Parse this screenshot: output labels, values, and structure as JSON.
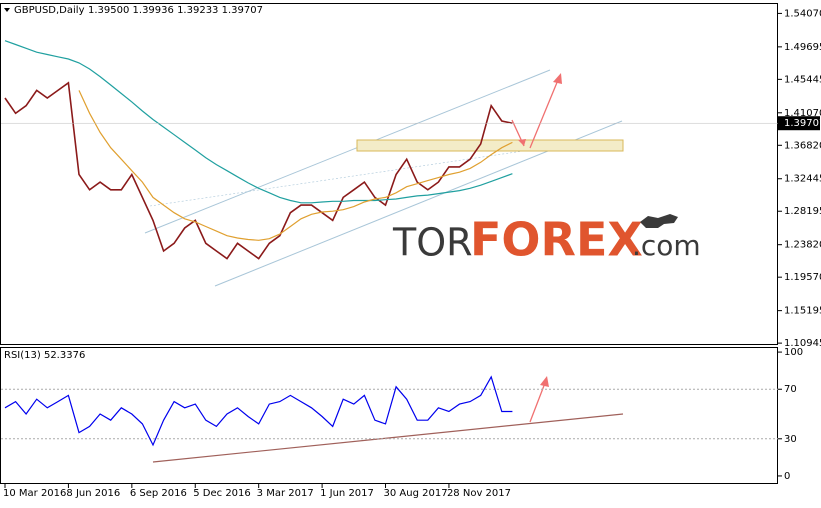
{
  "chart_data": [
    {
      "type": "line",
      "title": "GBPUSD,Daily",
      "subtitle": "1.39500 1.39936 1.39233 1.39707",
      "ylim": [
        1.107,
        1.553
      ],
      "yticks": [
        {
          "value": 1.5407,
          "label": "1.54070"
        },
        {
          "value": 1.49695,
          "label": "1.49695"
        },
        {
          "value": 1.45445,
          "label": "1.45445"
        },
        {
          "value": 1.4107,
          "label": "1.41070"
        },
        {
          "value": 1.3682,
          "label": "1.36820"
        },
        {
          "value": 1.32445,
          "label": "1.32445"
        },
        {
          "value": 1.28195,
          "label": "1.28195"
        },
        {
          "value": 1.2382,
          "label": "1.23820"
        },
        {
          "value": 1.1957,
          "label": "1.19570"
        },
        {
          "value": 1.15195,
          "label": "1.15195"
        },
        {
          "value": 1.10945,
          "label": "1.10945"
        }
      ],
      "last_price": {
        "value": 1.39707,
        "label": "1.39707"
      },
      "series": [
        {
          "color": "#8b1a1a",
          "values": [
            1.43,
            1.41,
            1.42,
            1.44,
            1.43,
            1.44,
            1.45,
            1.33,
            1.31,
            1.32,
            1.31,
            1.31,
            1.33,
            1.3,
            1.27,
            1.23,
            1.24,
            1.26,
            1.27,
            1.24,
            1.23,
            1.22,
            1.24,
            1.23,
            1.22,
            1.24,
            1.25,
            1.28,
            1.29,
            1.29,
            1.28,
            1.27,
            1.3,
            1.31,
            1.32,
            1.3,
            1.29,
            1.33,
            1.35,
            1.32,
            1.31,
            1.32,
            1.34,
            1.34,
            1.35,
            1.37,
            1.42,
            1.4,
            1.397
          ]
        },
        {
          "color": "#20a0a0",
          "values": [
            1.505,
            1.5,
            1.495,
            1.49,
            1.487,
            1.484,
            1.481,
            1.476,
            1.468,
            1.458,
            1.447,
            1.436,
            1.425,
            1.413,
            1.402,
            1.392,
            1.382,
            1.372,
            1.362,
            1.352,
            1.343,
            1.335,
            1.327,
            1.319,
            1.312,
            1.306,
            1.3,
            1.296,
            1.293,
            1.293,
            1.294,
            1.295,
            1.295,
            1.296,
            1.296,
            1.296,
            1.297,
            1.298,
            1.3,
            1.302,
            1.303,
            1.305,
            1.307,
            1.309,
            1.312,
            1.316,
            1.321,
            1.326,
            1.331
          ]
        },
        {
          "color": "#e0a030",
          "values": [
            null,
            null,
            null,
            null,
            null,
            null,
            null,
            1.44,
            1.41,
            1.385,
            1.365,
            1.35,
            1.335,
            1.32,
            1.3,
            1.29,
            1.28,
            1.272,
            1.268,
            1.262,
            1.256,
            1.25,
            1.247,
            1.245,
            1.244,
            1.246,
            1.252,
            1.262,
            1.272,
            1.278,
            1.281,
            1.282,
            1.284,
            1.288,
            1.294,
            1.298,
            1.3,
            1.306,
            1.314,
            1.318,
            1.322,
            1.326,
            1.33,
            1.333,
            1.338,
            1.346,
            1.356,
            1.365,
            1.372
          ]
        }
      ]
    },
    {
      "type": "line",
      "title": "RSI(13) 52.3376",
      "categories": [
        "10 Mar 2016",
        null,
        null,
        null,
        null,
        null,
        "8 Jun 2016",
        null,
        null,
        null,
        null,
        null,
        "6 Sep 2016",
        null,
        null,
        null,
        null,
        null,
        "5 Dec 2016",
        null,
        null,
        null,
        null,
        null,
        "3 Mar 2017",
        null,
        null,
        null,
        null,
        null,
        "1 Jun 2017",
        null,
        null,
        null,
        null,
        null,
        "30 Aug 2017",
        null,
        null,
        null,
        null,
        null,
        "28 Nov 2017",
        null,
        null,
        null,
        null,
        null,
        null
      ],
      "ylim": [
        -6.5,
        103.3
      ],
      "yticks": [
        100,
        70,
        30,
        0
      ],
      "series": [
        {
          "color": "#0000ee",
          "values": [
            55,
            60,
            50,
            62,
            55,
            60,
            65,
            35,
            40,
            50,
            45,
            55,
            50,
            42,
            25,
            45,
            60,
            55,
            58,
            45,
            40,
            50,
            55,
            48,
            42,
            58,
            60,
            65,
            60,
            55,
            48,
            40,
            62,
            58,
            65,
            45,
            42,
            72,
            62,
            45,
            45,
            55,
            52,
            58,
            60,
            65,
            80,
            52,
            52
          ]
        }
      ]
    }
  ],
  "brand": {
    "parts": [
      "TOR",
      "FOREX",
      ".com"
    ]
  }
}
